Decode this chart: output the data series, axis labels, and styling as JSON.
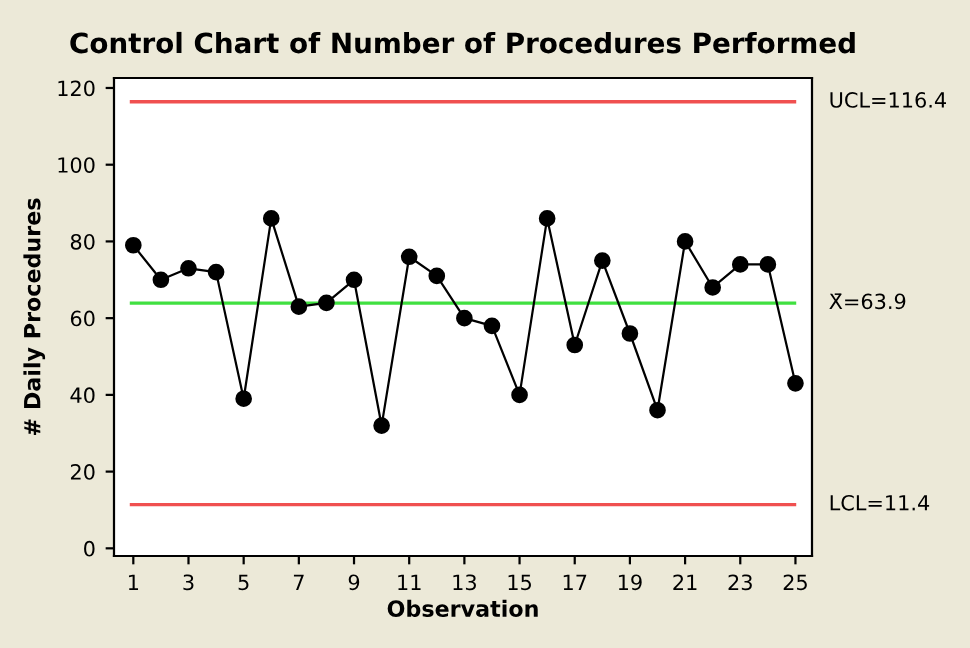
{
  "chart_data": {
    "type": "line",
    "title": "Control Chart of Number of Procedures Performed",
    "xlabel": "Observation",
    "ylabel": "# Daily Procedures",
    "x": [
      1,
      2,
      3,
      4,
      5,
      6,
      7,
      8,
      9,
      10,
      11,
      12,
      13,
      14,
      15,
      16,
      17,
      18,
      19,
      20,
      21,
      22,
      23,
      24,
      25
    ],
    "series": [
      {
        "color": "#000000",
        "values": [
          79,
          70,
          73,
          72,
          39,
          86,
          63,
          64,
          70,
          32,
          76,
          71,
          60,
          58,
          40,
          86,
          53,
          75,
          56,
          36,
          80,
          68,
          74,
          74,
          43
        ]
      }
    ],
    "xlim": [
      0.3,
      25.6
    ],
    "xticks": [
      1,
      3,
      5,
      7,
      9,
      11,
      13,
      15,
      17,
      19,
      21,
      23,
      25
    ],
    "ylim": [
      -2,
      122.6
    ],
    "yticks": [
      0,
      20,
      40,
      60,
      80,
      100,
      120
    ],
    "ref_lines": [
      {
        "axis": "y",
        "value": 116.4,
        "label": "UCL=116.4",
        "color": "#f05050"
      },
      {
        "axis": "y",
        "value": 63.9,
        "label": "X̄=63.9",
        "color": "#40e040"
      },
      {
        "axis": "y",
        "value": 11.4,
        "label": "LCL=11.4",
        "color": "#f05050"
      }
    ],
    "marker": "circle",
    "line_style": "solid",
    "grid": false,
    "legend": false
  }
}
